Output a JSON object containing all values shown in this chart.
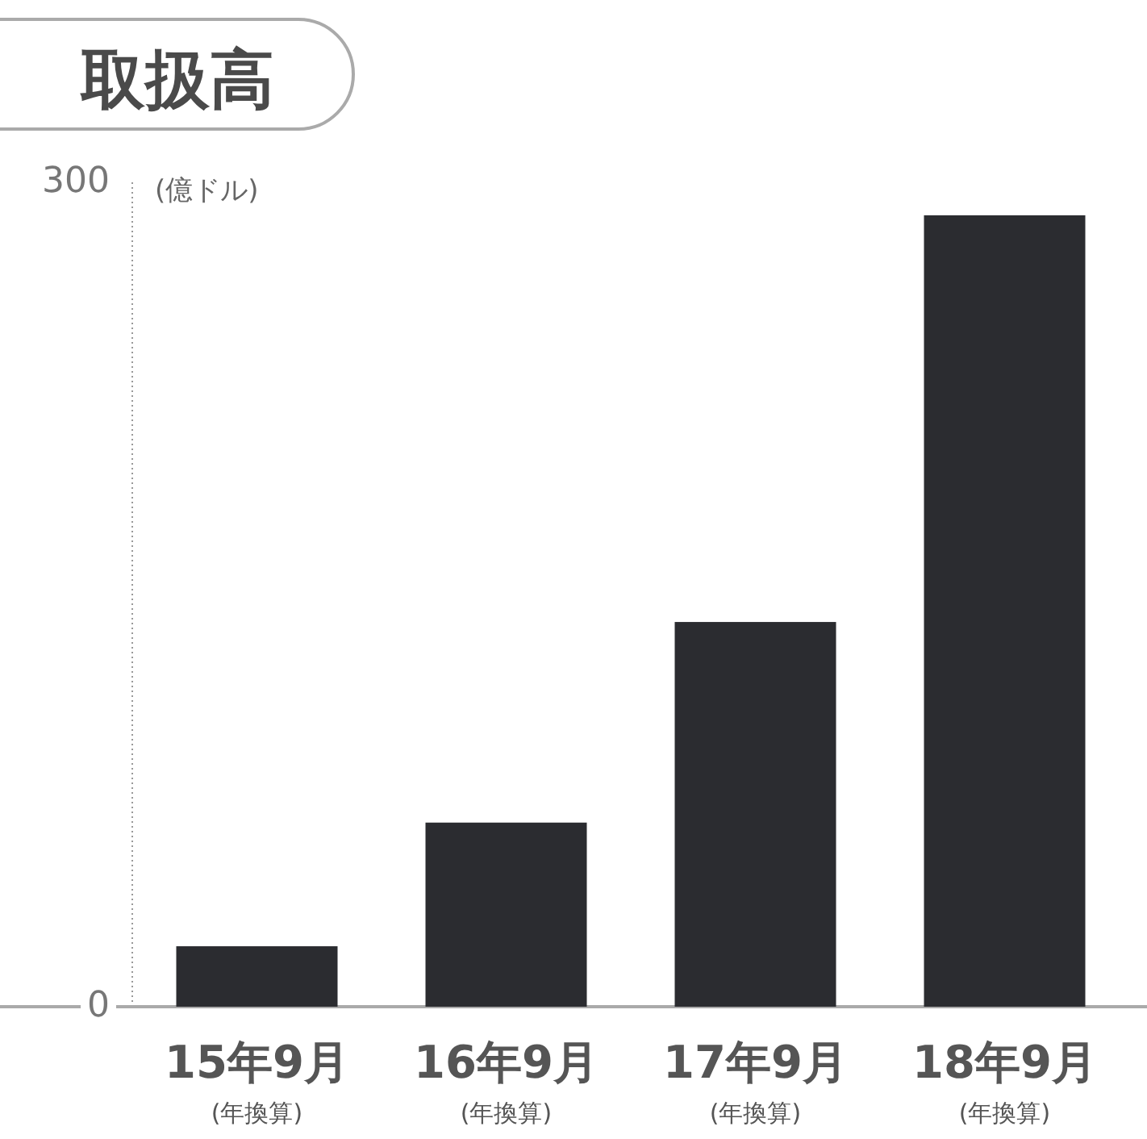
{
  "chart_data": {
    "type": "bar",
    "title": "取扱高",
    "ylabel": "(億ドル)",
    "categories": [
      "15年9月\n(年換算)",
      "16年9月\n(年換算)",
      "17年9月\n(年換算)",
      "18年9月\n(年換算)"
    ],
    "values": [
      22,
      67,
      140,
      288
    ],
    "color": "#2b2c30",
    "ylim": [
      0,
      300
    ],
    "yticks": [
      0,
      300
    ],
    "grid": false
  }
}
